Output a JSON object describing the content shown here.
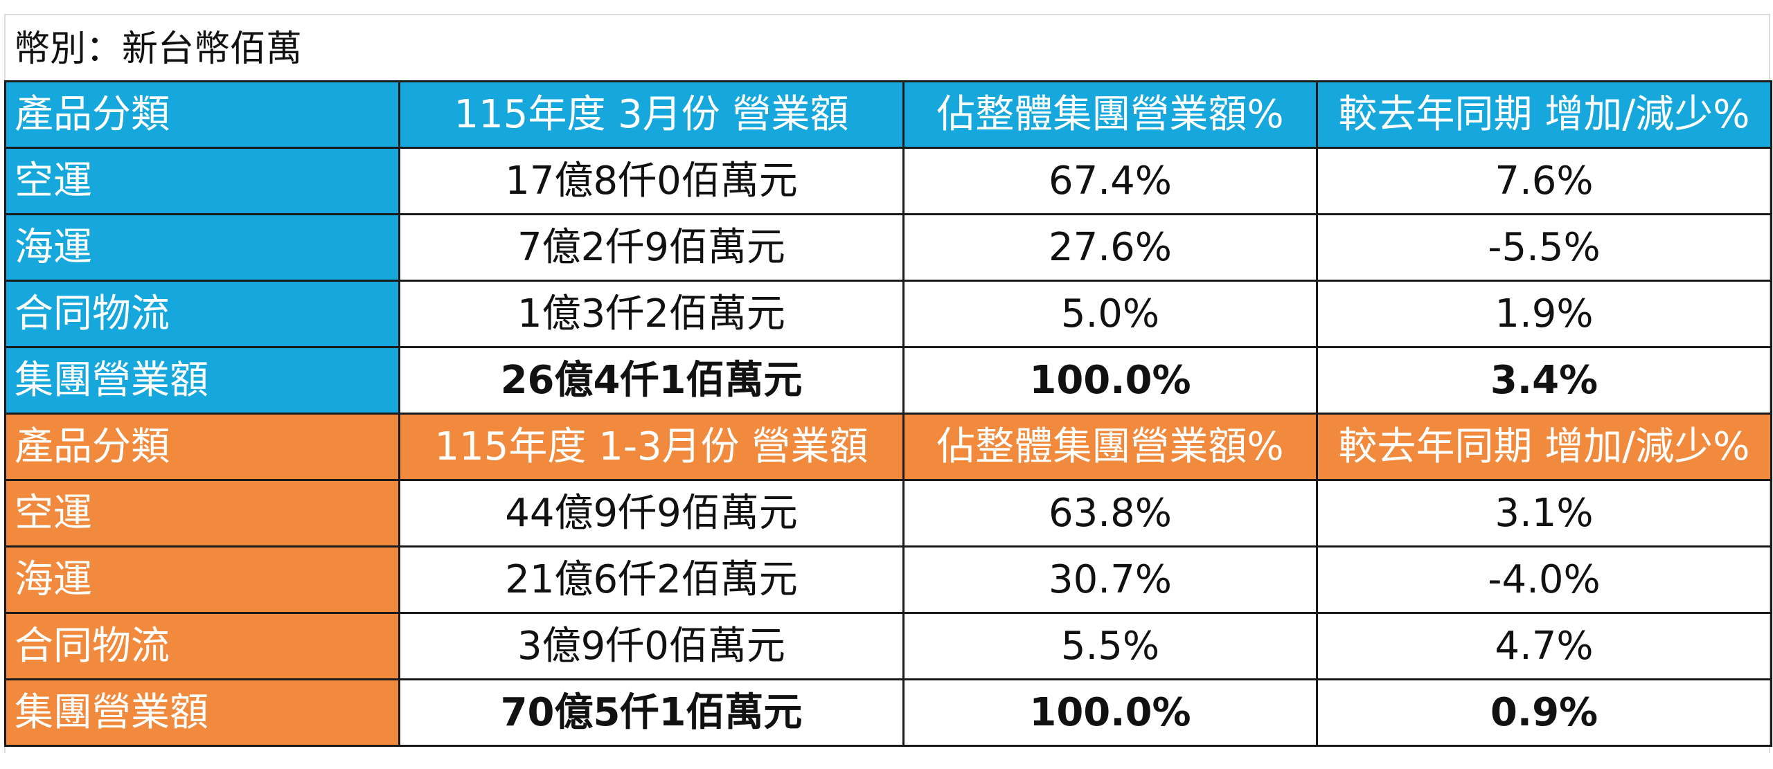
{
  "currency_label": "幣別：新台幣佰萬",
  "colors": {
    "section1_header": "#16a7dc",
    "section2_header": "#f28a3e",
    "border": "#1a1a1a"
  },
  "sections": [
    {
      "headers": [
        "產品分類",
        "115年度 3月份 營業額",
        "佔整體集團營業額%",
        "較去年同期 增加/減少%"
      ],
      "rows": [
        {
          "category": "空運",
          "revenue": "17億8仟0佰萬元",
          "share": "67.4%",
          "yoy": "7.6%"
        },
        {
          "category": "海運",
          "revenue": "7億2仟9佰萬元",
          "share": "27.6%",
          "yoy": "-5.5%"
        },
        {
          "category": "合同物流",
          "revenue": "1億3仟2佰萬元",
          "share": "5.0%",
          "yoy": "1.9%"
        }
      ],
      "total": {
        "category": "集團營業額",
        "revenue": "26億4仟1佰萬元",
        "share": "100.0%",
        "yoy": "3.4%"
      }
    },
    {
      "headers": [
        "產品分類",
        "115年度 1-3月份 營業額",
        "佔整體集團營業額%",
        "較去年同期 增加/減少%"
      ],
      "rows": [
        {
          "category": "空運",
          "revenue": "44億9仟9佰萬元",
          "share": "63.8%",
          "yoy": "3.1%"
        },
        {
          "category": "海運",
          "revenue": "21億6仟2佰萬元",
          "share": "30.7%",
          "yoy": "-4.0%"
        },
        {
          "category": "合同物流",
          "revenue": "3億9仟0佰萬元",
          "share": "5.5%",
          "yoy": "4.7%"
        }
      ],
      "total": {
        "category": "集團營業額",
        "revenue": "70億5仟1佰萬元",
        "share": "100.0%",
        "yoy": "0.9%"
      }
    }
  ]
}
